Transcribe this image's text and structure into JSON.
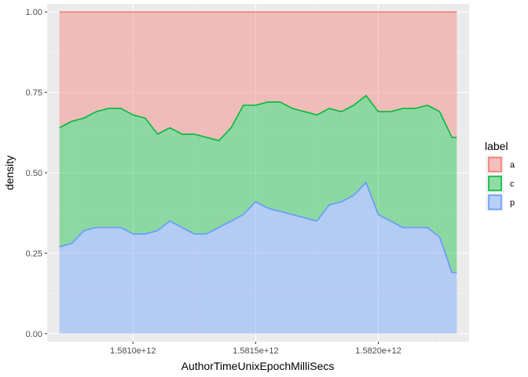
{
  "chart_data": {
    "type": "area",
    "stacking": "fill",
    "xlabel": "AuthorTimeUnixEpochMilliSecs",
    "ylabel": "density",
    "xlim": [
      1580650000000,
      1582370000000
    ],
    "ylim": [
      -0.025,
      1.025
    ],
    "x_ticks": [
      1581000000000,
      1581500000000,
      1582000000000
    ],
    "x_tick_labels": [
      "1.5810e+12",
      "1.5815e+12",
      "1.5820e+12"
    ],
    "y_ticks": [
      0,
      0.25,
      0.5,
      0.75,
      1.0
    ],
    "y_tick_labels": [
      "0.00",
      "0.25",
      "0.50",
      "0.75",
      "1.00"
    ],
    "grid": true,
    "legend": {
      "title": "label",
      "position": "right",
      "entries": [
        "a",
        "c",
        "p"
      ]
    },
    "x": [
      1580700000000,
      1580750000000,
      1580800000000,
      1580850000000,
      1580900000000,
      1580950000000,
      1581000000000,
      1581050000000,
      1581100000000,
      1581150000000,
      1581200000000,
      1581250000000,
      1581300000000,
      1581350000000,
      1581400000000,
      1581450000000,
      1581500000000,
      1581550000000,
      1581600000000,
      1581650000000,
      1581700000000,
      1581750000000,
      1581800000000,
      1581850000000,
      1581900000000,
      1581950000000,
      1582000000000,
      1582050000000,
      1582100000000,
      1582150000000,
      1582200000000,
      1582250000000,
      1582300000000,
      1582320000000
    ],
    "series": [
      {
        "name": "p",
        "color": "#619cff",
        "values": [
          0.27,
          0.28,
          0.32,
          0.33,
          0.33,
          0.33,
          0.31,
          0.31,
          0.32,
          0.35,
          0.33,
          0.31,
          0.31,
          0.33,
          0.35,
          0.37,
          0.41,
          0.39,
          0.38,
          0.37,
          0.36,
          0.35,
          0.4,
          0.41,
          0.43,
          0.47,
          0.37,
          0.35,
          0.33,
          0.33,
          0.33,
          0.3,
          0.19,
          0.19
        ]
      },
      {
        "name": "c",
        "color": "#00ba38",
        "values": [
          0.37,
          0.38,
          0.35,
          0.36,
          0.37,
          0.37,
          0.37,
          0.36,
          0.3,
          0.29,
          0.29,
          0.31,
          0.3,
          0.27,
          0.29,
          0.34,
          0.3,
          0.33,
          0.34,
          0.33,
          0.33,
          0.33,
          0.3,
          0.28,
          0.28,
          0.27,
          0.32,
          0.34,
          0.37,
          0.37,
          0.38,
          0.39,
          0.42,
          0.42
        ]
      },
      {
        "name": "a",
        "color": "#f8766d",
        "values": [
          0.36,
          0.34,
          0.33,
          0.31,
          0.3,
          0.3,
          0.32,
          0.33,
          0.38,
          0.36,
          0.38,
          0.38,
          0.39,
          0.4,
          0.36,
          0.29,
          0.29,
          0.28,
          0.28,
          0.3,
          0.31,
          0.32,
          0.3,
          0.31,
          0.29,
          0.26,
          0.31,
          0.31,
          0.3,
          0.3,
          0.29,
          0.31,
          0.39,
          0.39
        ]
      }
    ]
  }
}
